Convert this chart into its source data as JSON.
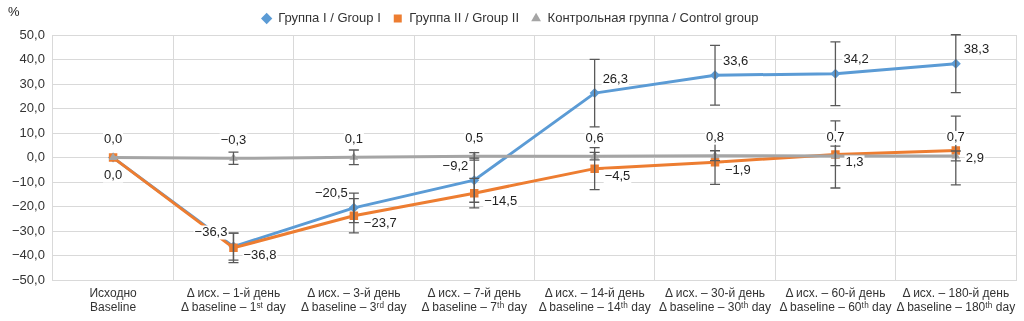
{
  "chart_data": {
    "type": "line",
    "ylabel": "%",
    "categories": [
      "Исходно\nBaseline",
      "Δ исх. – 1-й день\nΔ baseline – 1ˢᵗ day",
      "Δ исх. – 3-й день\nΔ baseline – 3ʳᵈ day",
      "Δ исх. – 7-й день\nΔ baseline – 7ᵗʰ day",
      "Δ исх. – 14-й день\nΔ baseline – 14ᵗʰ day",
      "Δ исх. – 30-й день\nΔ baseline – 30ᵗʰ day",
      "Δ исх. – 60-й день\nΔ baseline – 60ᵗʰ day",
      "Δ исх. – 180-й день\nΔ baseline – 180ᵗʰ day"
    ],
    "series": [
      {
        "name": "Группа I / Group I",
        "color": "#5b9bd5",
        "marker": "diamond",
        "values": [
          0,
          -36.3,
          -20.5,
          -9.2,
          26.3,
          33.6,
          34.2,
          38.3
        ],
        "value_labels": [
          null,
          "−36,3",
          "−20,5",
          "−9,2",
          "26,3",
          "33,6",
          "34,2",
          "38,3"
        ],
        "errors": [
          null,
          5.5,
          6,
          9,
          13.8,
          12.2,
          13,
          11.8
        ]
      },
      {
        "name": "Группа II / Group II",
        "color": "#ed7d31",
        "marker": "square",
        "values": [
          0,
          -36.8,
          -23.7,
          -14.5,
          -4.5,
          -1.9,
          1.3,
          2.9
        ],
        "value_labels": [
          "0,0",
          "−36,8",
          "−23,7",
          "−14,5",
          "−4,5",
          "−1,9",
          "1,3",
          "2,9"
        ],
        "errors": [
          null,
          6,
          7,
          6,
          8.6,
          9,
          13.7,
          14
        ]
      },
      {
        "name": "Контрольная группа / Control group",
        "color": "#a5a5a5",
        "marker": "triangle",
        "values": [
          0,
          -0.3,
          0.1,
          0.5,
          0.6,
          0.8,
          0.7,
          0.7
        ],
        "value_labels": [
          "0,0",
          "−0,3",
          "0,1",
          "0,5",
          "0,6",
          "0,8",
          "0,7",
          "0,7"
        ],
        "errors": [
          null,
          2.5,
          3,
          1.5,
          1.5,
          2,
          4,
          2
        ]
      }
    ],
    "ylim": [
      -50,
      50
    ],
    "yticks": [
      {
        "value": -50,
        "label": "−50,0"
      },
      {
        "value": -40,
        "label": "−40,0"
      },
      {
        "value": -30,
        "label": "−30,0"
      },
      {
        "value": -20,
        "label": "−20,0"
      },
      {
        "value": -10,
        "label": "−10,0"
      },
      {
        "value": 0,
        "label": "0,0"
      },
      {
        "value": 10,
        "label": "10,0"
      },
      {
        "value": 20,
        "label": "20,0"
      },
      {
        "value": 30,
        "label": "30,0"
      },
      {
        "value": 40,
        "label": "40,0"
      },
      {
        "value": 50,
        "label": "50,0"
      }
    ],
    "grid": true,
    "legend": "top",
    "line_style": "solid"
  }
}
